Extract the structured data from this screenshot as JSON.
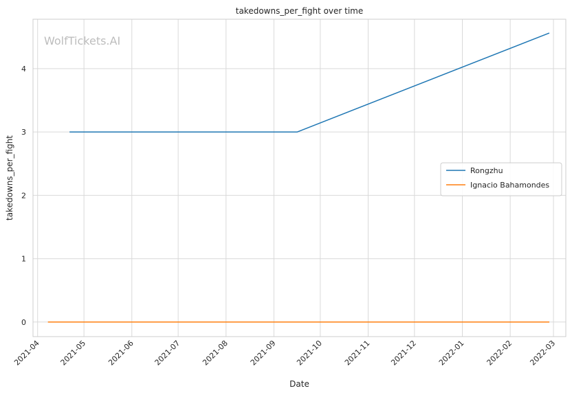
{
  "watermark": "WolfTickets.AI",
  "chart_data": {
    "type": "line",
    "title": "takedowns_per_fight over time",
    "xlabel": "Date",
    "ylabel": "takedowns_per_fight",
    "x_axis_type": "date",
    "xlim": [
      "2021-03-29",
      "2022-03-09"
    ],
    "ylim": [
      -0.23,
      4.78
    ],
    "x_ticks": [
      "2021-04",
      "2021-05",
      "2021-06",
      "2021-07",
      "2021-08",
      "2021-09",
      "2021-10",
      "2021-11",
      "2021-12",
      "2022-01",
      "2022-02",
      "2022-03"
    ],
    "y_ticks": [
      "0",
      "1",
      "2",
      "3",
      "4"
    ],
    "grid": true,
    "legend_position": "center-right",
    "series": [
      {
        "name": "Rongzhu",
        "color": "#1f77b4",
        "points": [
          {
            "x": "2021-04-22",
            "y": 3
          },
          {
            "x": "2021-09-16",
            "y": 3
          },
          {
            "x": "2022-02-26",
            "y": 4.56
          }
        ]
      },
      {
        "name": "Ignacio Bahamondes",
        "color": "#ff7f0e",
        "points": [
          {
            "x": "2021-04-08",
            "y": 0
          },
          {
            "x": "2022-02-26",
            "y": 0
          }
        ]
      }
    ]
  }
}
